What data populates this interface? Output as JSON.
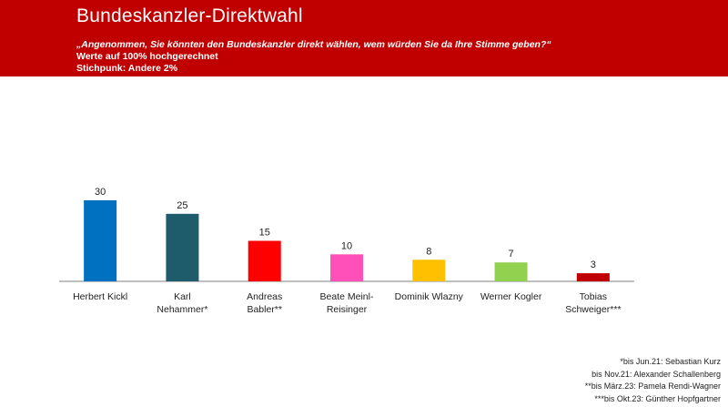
{
  "header": {
    "title": "Bundeskanzler-Direktwahl",
    "question": "„Angenommen, Sie könnten den Bundeskanzler direkt wählen, wem würden Sie da Ihre Stimme geben?“",
    "note_projection": "Werte auf 100% hochgerechnet",
    "note_sample": "Stichpunk: Andere 2%"
  },
  "colors": {
    "header_bg": "#c00000",
    "axis": "#7f7f7f"
  },
  "chart_data": {
    "type": "bar",
    "title": "",
    "xlabel": "",
    "ylabel": "",
    "ylim": [
      0,
      30
    ],
    "grid": false,
    "legend": "none",
    "categories": [
      [
        "Herbert Kickl"
      ],
      [
        "Karl",
        "Nehammer*"
      ],
      [
        "Andreas",
        "Babler**"
      ],
      [
        "Beate Meinl-",
        "Reisinger"
      ],
      [
        "Dominik Wlazny"
      ],
      [
        "Werner Kogler"
      ],
      [
        "Tobias",
        "Schweiger***"
      ]
    ],
    "values": [
      30,
      25,
      15,
      10,
      8,
      7,
      3
    ],
    "value_labels": [
      "30",
      "25",
      "15",
      "10",
      "8",
      "7",
      "3"
    ],
    "colors": [
      "#0070c0",
      "#1f5c6b",
      "#ff0000",
      "#ff4fb8",
      "#ffc000",
      "#92d050",
      "#c00000"
    ]
  },
  "footnotes": [
    "*bis Jun.21: Sebastian Kurz",
    "bis Nov.21: Alexander Schallenberg",
    "**bis März.23: Pamela Rendi-Wagner",
    "***bis Okt.23: Günther Hopfgartner"
  ]
}
